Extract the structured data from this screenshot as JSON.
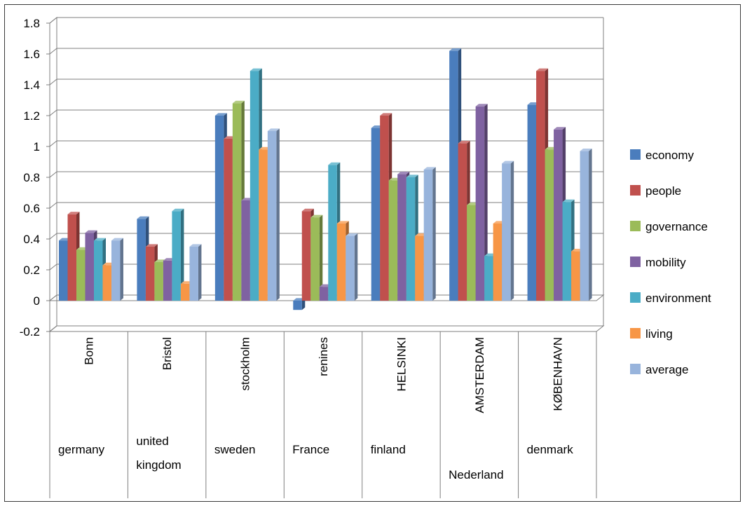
{
  "chart_data": {
    "type": "bar",
    "style": "3d-clustered-column",
    "title": "",
    "xlabel": "",
    "ylabel": "",
    "ylim": [
      -0.2,
      1.8
    ],
    "ytick_labels": [
      "-0.2",
      "0",
      "0.2",
      "0.4",
      "0.6",
      "0.8",
      "1",
      "1.2",
      "1.4",
      "1.6",
      "1.8"
    ],
    "grid": true,
    "legend_position": "right",
    "categories": [
      {
        "city": "Bonn",
        "country": "germany"
      },
      {
        "city": "Bristol",
        "country": "united kingdom"
      },
      {
        "city": "stockholm",
        "country": "sweden"
      },
      {
        "city": "renines",
        "country": "France"
      },
      {
        "city": "HELSINKI",
        "country": "finland"
      },
      {
        "city": "AMSTERDAM",
        "country": "Nederland"
      },
      {
        "city": "KØBENHAVN",
        "country": "denmark"
      }
    ],
    "series": [
      {
        "name": "economy",
        "color": "#4a7dbd",
        "values": [
          0.39,
          0.53,
          1.2,
          -0.06,
          1.12,
          1.62,
          1.27
        ]
      },
      {
        "name": "people",
        "color": "#c0504d",
        "values": [
          0.56,
          0.35,
          1.05,
          0.58,
          1.2,
          1.02,
          1.49
        ]
      },
      {
        "name": "governance",
        "color": "#9bbb59",
        "values": [
          0.33,
          0.25,
          1.28,
          0.54,
          0.78,
          0.62,
          0.98
        ]
      },
      {
        "name": "mobility",
        "color": "#7f62a1",
        "values": [
          0.44,
          0.26,
          0.65,
          0.09,
          0.82,
          1.26,
          1.11
        ]
      },
      {
        "name": "environment",
        "color": "#4bacc6",
        "values": [
          0.39,
          0.58,
          1.49,
          0.88,
          0.8,
          0.29,
          0.64
        ]
      },
      {
        "name": "living",
        "color": "#f79646",
        "values": [
          0.23,
          0.11,
          0.98,
          0.5,
          0.42,
          0.5,
          0.32
        ]
      },
      {
        "name": "average",
        "color": "#98b4dc",
        "values": [
          0.39,
          0.35,
          1.1,
          0.42,
          0.85,
          0.89,
          0.97
        ]
      }
    ]
  }
}
